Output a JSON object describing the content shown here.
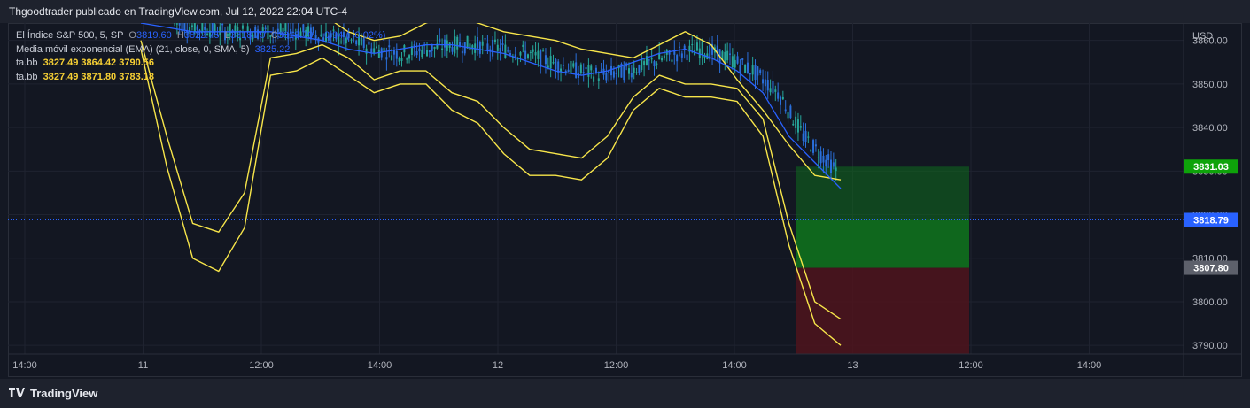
{
  "header": {
    "title": "Thgoodtrader publicado en TradingView.com, Jul 12, 2022 22:04 UTC-4"
  },
  "legend": {
    "symbol": "El Índice S&P 500, 5, SP",
    "open_label": "O",
    "open": "3819.60",
    "high_label": "H",
    "high": "3822.75",
    "low_label": "L",
    "low": "3818.79",
    "close_label": "C",
    "close": "3818.79",
    "change": "−0.94 (−0.02%)",
    "ema_label": "Media móvil exponencial (EMA) (21, close, 0, SMA, 5)",
    "ema_value": "3825.22",
    "bb1_label": "ta.bb",
    "bb1_values": "3827.49  3864.42  3790.56",
    "bb2_label": "ta.bb",
    "bb2_values": "3827.49  3871.80  3783.18"
  },
  "footer": {
    "brand": "TradingView"
  },
  "colors": {
    "candle_up": "#26a69a",
    "candle_down": "#2a6fdb",
    "ema": "#2962ff",
    "bands": "#f7e54a",
    "target_zone": "#0f6b1e",
    "stop_zone": "#4f141c",
    "target_badge": "#0ea30a",
    "price_badge": "#2962ff",
    "stop_badge": "#5d606b"
  },
  "chart_data": {
    "type": "line",
    "y_axis": {
      "currency": "USD",
      "ticks": [
        "3860.00",
        "3850.00",
        "3840.00",
        "3830.00",
        "3820.00",
        "3810.00",
        "3800.00",
        "3790.00"
      ],
      "range": [
        3788,
        3864
      ]
    },
    "x_axis": {
      "ticks": [
        "14:00",
        "11",
        "12:00",
        "14:00",
        "12",
        "12:00",
        "14:00",
        "13",
        "12:00",
        "14:00"
      ]
    },
    "price_labels": {
      "target": "3831.03",
      "last": "3818.79",
      "entry": "3807.80"
    },
    "position": {
      "entry": 3807.8,
      "target": 3831.03,
      "stop": 3789.0,
      "current": 3818.79
    },
    "series": [
      {
        "name": "ta.bb",
        "role": "upper",
        "values": [
          3870,
          3868,
          3867,
          3868,
          3869,
          3871,
          3870,
          3866,
          3862,
          3860,
          3861,
          3864,
          3866,
          3864,
          3862,
          3861,
          3860,
          3858,
          3857,
          3856,
          3859,
          3862,
          3859,
          3851,
          3844,
          3836,
          3829,
          3828
        ]
      },
      {
        "name": "ta.bb",
        "role": "lower-outer",
        "values": [
          3858,
          3831,
          3810,
          3807,
          3817,
          3852,
          3853,
          3856,
          3852,
          3848,
          3850,
          3850,
          3844,
          3841,
          3834,
          3829,
          3829,
          3828,
          3833,
          3844,
          3849,
          3847,
          3847,
          3846,
          3838,
          3813,
          3795,
          3790
        ]
      },
      {
        "name": "ta.bb",
        "role": "lower-inner",
        "values": [
          3860,
          3838,
          3818,
          3816,
          3825,
          3856,
          3857,
          3859,
          3856,
          3851,
          3853,
          3853,
          3848,
          3846,
          3840,
          3835,
          3834,
          3833,
          3838,
          3847,
          3852,
          3850,
          3850,
          3849,
          3842,
          3818,
          3800,
          3796
        ]
      },
      {
        "name": "EMA",
        "role": "ema",
        "values": [
          3864,
          3863,
          3862,
          3862,
          3862,
          3862,
          3861,
          3860,
          3858,
          3857,
          3858,
          3859,
          3859,
          3858,
          3857,
          3855,
          3853,
          3852,
          3853,
          3855,
          3857,
          3858,
          3856,
          3853,
          3848,
          3838,
          3832,
          3826
        ]
      }
    ]
  }
}
